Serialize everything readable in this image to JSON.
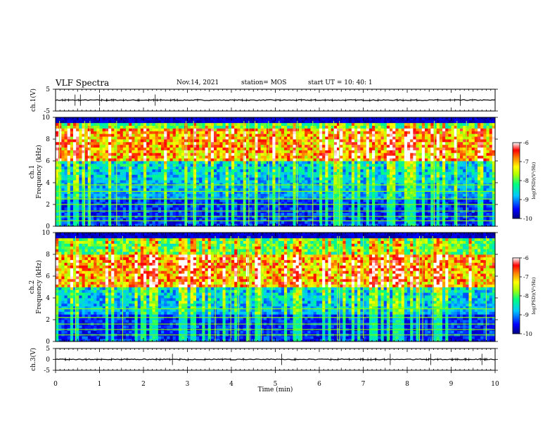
{
  "header": {
    "title": "VLF Spectra",
    "date": "Nov.14, 2021",
    "station": "station= MOS",
    "start_ut": "start  UT =  10: 40: 1"
  },
  "colors": {
    "scale": [
      "#000080",
      "#0000ff",
      "#00c8ff",
      "#00ff80",
      "#b0ff00",
      "#ffff00",
      "#ff8000",
      "#ff0000",
      "#ffffff"
    ],
    "trace": "#000000"
  },
  "chart_data": [
    {
      "type": "line",
      "name": "ch1-waveform",
      "ylabel": "ch.1(V)",
      "ylim": [
        -5,
        5
      ],
      "yticks": [
        "5",
        "-5"
      ],
      "x": [
        0,
        10
      ],
      "y": [
        0,
        0
      ]
    },
    {
      "type": "heatmap",
      "name": "ch1-spectrogram",
      "ylabel": "ch.1\nFrequency  (kHz)",
      "ylabel_line1": "ch.1",
      "ylabel_line2": "Frequency  (kHz)",
      "ylim": [
        0,
        10
      ],
      "yticks": [
        "0",
        "2",
        "4",
        "6",
        "8",
        "10"
      ],
      "xlim": [
        0,
        10
      ],
      "dominant_band_khz": [
        6,
        9
      ],
      "colorbar": {
        "label": "log(PSD)(V²/Hz)",
        "ticks": [
          "-6",
          "-7",
          "-8",
          "-9",
          "-10"
        ],
        "range": [
          -10,
          -6
        ]
      }
    },
    {
      "type": "heatmap",
      "name": "ch2-spectrogram",
      "ylabel_line1": "ch.2",
      "ylabel_line2": "Frequency  (kHz)",
      "ylim": [
        0,
        10
      ],
      "yticks": [
        "0",
        "2",
        "4",
        "6",
        "8",
        "10"
      ],
      "xlim": [
        0,
        10
      ],
      "dominant_band_khz": [
        5,
        8
      ],
      "colorbar": {
        "label": "log(PSD)(V²/Hz)",
        "ticks": [
          "-6",
          "-7",
          "-8",
          "-9",
          "-10"
        ],
        "range": [
          -10,
          -6
        ]
      }
    },
    {
      "type": "line",
      "name": "ch3-waveform",
      "ylabel": "ch.3(V)",
      "ylim": [
        -5,
        5
      ],
      "yticks": [
        "5",
        "0",
        "-5"
      ],
      "x": [
        0,
        10
      ],
      "y": [
        0,
        0
      ]
    }
  ],
  "xaxis": {
    "label": "Time  (min)",
    "ticks": [
      "0",
      "1",
      "2",
      "3",
      "4",
      "5",
      "6",
      "7",
      "8",
      "9",
      "10"
    ],
    "xlim": [
      0,
      10
    ]
  }
}
